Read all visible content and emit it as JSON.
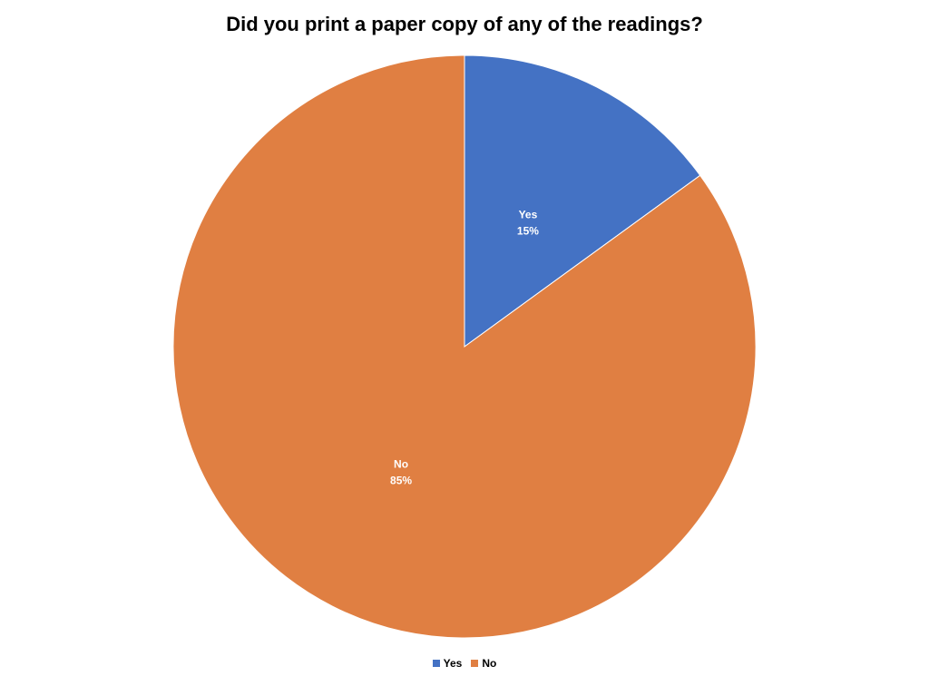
{
  "chart_data": {
    "type": "pie",
    "title": "Did you print a paper copy of any of the readings?",
    "categories": [
      "Yes",
      "No"
    ],
    "values": [
      15,
      85
    ],
    "data_labels": [
      "15%",
      "85%"
    ],
    "colors": [
      "#4472C4",
      "#E07F42"
    ],
    "legend_position": "bottom"
  }
}
